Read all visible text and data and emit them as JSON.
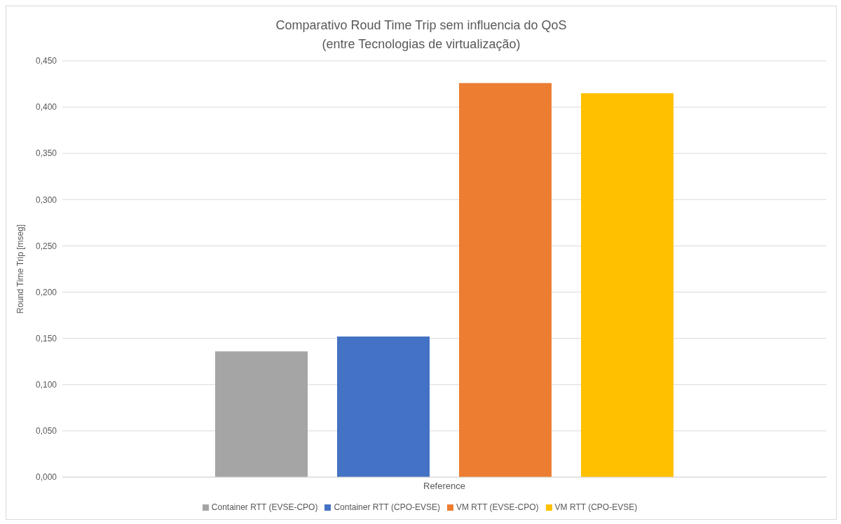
{
  "chart_data": {
    "type": "bar",
    "title": "Comparativo Roud Time Trip sem influencia do QoS",
    "subtitle": "(entre Tecnologias de virtualização)",
    "ylabel": "Round Time Trip [mseg]",
    "categories": [
      "Reference"
    ],
    "series": [
      {
        "name": "Container RTT (EVSE-CPO)",
        "color": "#a5a5a5",
        "values": [
          0.136
        ]
      },
      {
        "name": "Container RTT (CPO-EVSE)",
        "color": "#4472c4",
        "values": [
          0.152
        ]
      },
      {
        "name": "VM RTT (EVSE-CPO)",
        "color": "#ed7d31",
        "values": [
          0.426
        ]
      },
      {
        "name": "VM RTT (CPO-EVSE)",
        "color": "#ffc000",
        "values": [
          0.415
        ]
      }
    ],
    "ylim": [
      0,
      0.45
    ],
    "yticks": [
      {
        "value": 0,
        "label": "0,000"
      },
      {
        "value": 0.05,
        "label": "0,050"
      },
      {
        "value": 0.1,
        "label": "0,100"
      },
      {
        "value": 0.15,
        "label": "0,150"
      },
      {
        "value": 0.2,
        "label": "0,200"
      },
      {
        "value": 0.25,
        "label": "0,250"
      },
      {
        "value": 0.3,
        "label": "0,300"
      },
      {
        "value": 0.35,
        "label": "0,350"
      },
      {
        "value": 0.4,
        "label": "0,400"
      },
      {
        "value": 0.45,
        "label": "0,450"
      }
    ],
    "grid": "y",
    "legend": "bottom"
  }
}
